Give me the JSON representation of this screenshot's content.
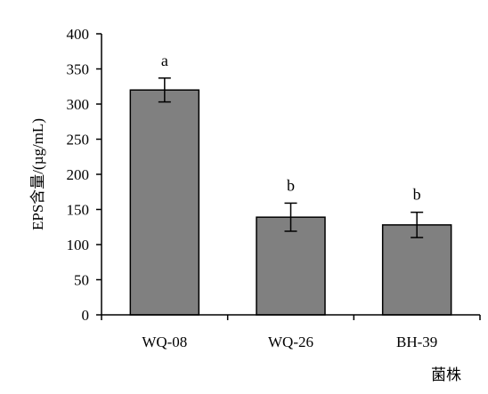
{
  "chart_data": {
    "type": "bar",
    "title": "",
    "xlabel": "菌株",
    "ylabel": "EPS含量/(µg/mL)",
    "ylim": [
      0,
      400
    ],
    "yticks": [
      0,
      50,
      100,
      150,
      200,
      250,
      300,
      350,
      400
    ],
    "categories": [
      "WQ-08",
      "WQ-26",
      "BH-39"
    ],
    "values": [
      320,
      139,
      128
    ],
    "error": [
      17,
      20,
      18
    ],
    "significance_labels": [
      "a",
      "b",
      "b"
    ],
    "bar_color": "#808080",
    "grid": false,
    "legend": "none"
  }
}
